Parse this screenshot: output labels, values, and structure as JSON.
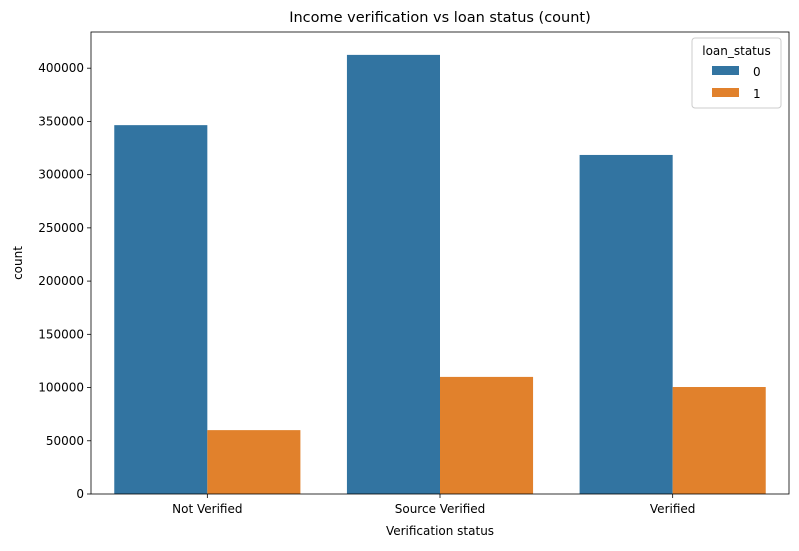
{
  "chart_data": {
    "type": "bar",
    "title": "Income verification vs loan status (count)",
    "xlabel": "Verification status",
    "ylabel": "count",
    "categories": [
      "Not Verified",
      "Source Verified",
      "Verified"
    ],
    "series": [
      {
        "name": "0",
        "color": "#3274a1",
        "values": [
          346500,
          412500,
          318500
        ]
      },
      {
        "name": "1",
        "color": "#e1812c",
        "values": [
          60000,
          110000,
          100500
        ]
      }
    ],
    "ylim": [
      0,
      434000
    ],
    "yticks": [
      0,
      50000,
      100000,
      150000,
      200000,
      250000,
      300000,
      350000,
      400000
    ],
    "legend": {
      "title": "loan_status",
      "placement": "top-right"
    },
    "grid": false
  }
}
